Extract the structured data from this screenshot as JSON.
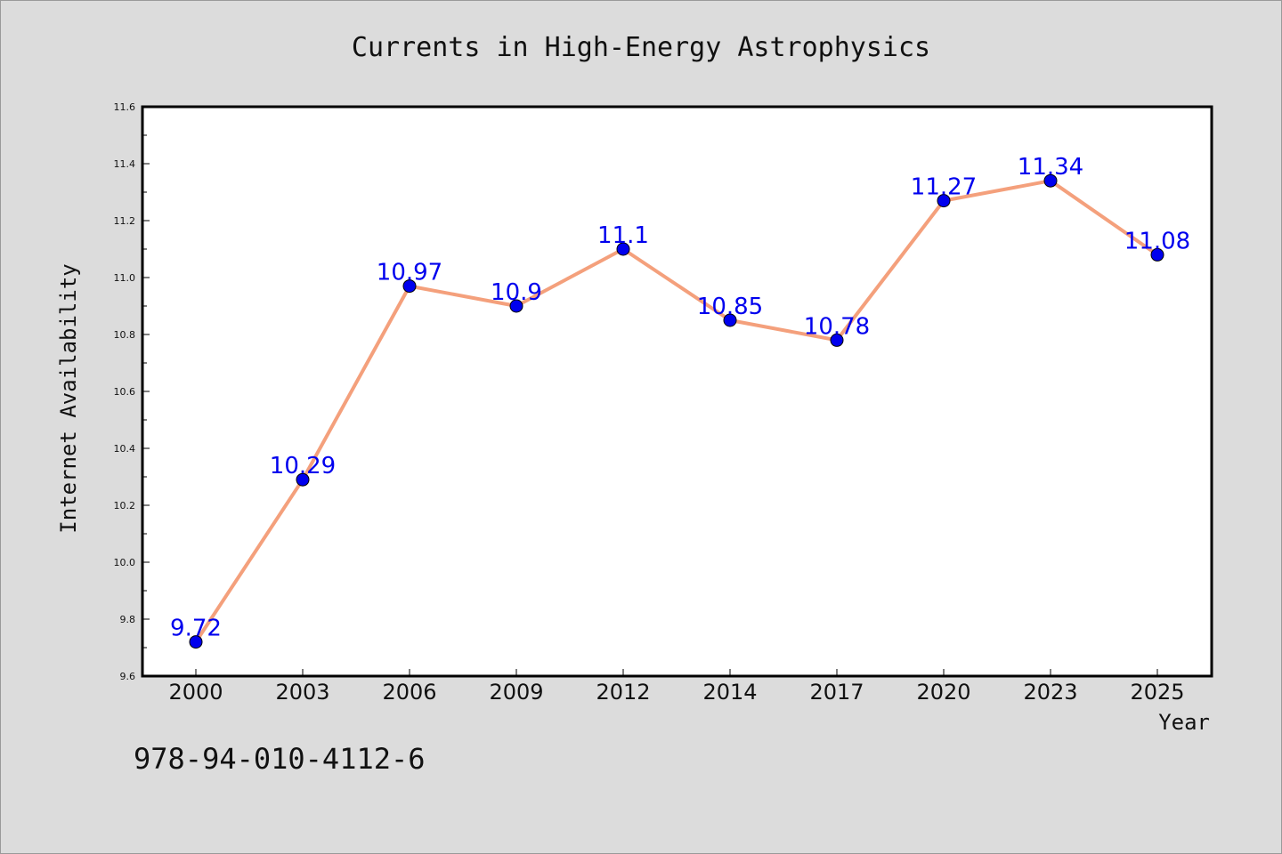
{
  "chart_data": {
    "type": "line",
    "title": "Currents in High-Energy Astrophysics",
    "xlabel": "Year",
    "ylabel": "Internet Availability",
    "categories": [
      "2000",
      "2003",
      "2006",
      "2009",
      "2012",
      "2014",
      "2017",
      "2020",
      "2023",
      "2025"
    ],
    "series": [
      {
        "values": [
          9.72,
          10.29,
          10.97,
          10.9,
          11.1,
          10.85,
          10.78,
          11.27,
          11.34,
          11.08
        ],
        "data_labels": [
          "9.72",
          "10.29",
          "10.97",
          "10.9",
          "11.1",
          "10.85",
          "10.78",
          "11.27",
          "11.34",
          "11.08"
        ]
      }
    ],
    "ylim": [
      9.6,
      11.6
    ],
    "yticks": [
      "9.6",
      "9.8",
      "10.0",
      "10.2",
      "10.4",
      "10.6",
      "10.8",
      "11.0",
      "11.2",
      "11.4",
      "11.6"
    ],
    "grid": false,
    "legend": "none",
    "colors": {
      "line": "#f4a07c",
      "marker": "#0000ee",
      "label": "#0000ee",
      "plot_bg": "#ffffff",
      "page_bg": "#dcdcdc"
    }
  },
  "footer_text": "978-94-010-4112-6"
}
